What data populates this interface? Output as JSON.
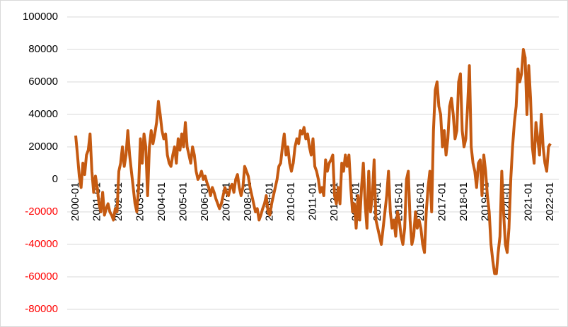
{
  "chart_data": {
    "type": "line",
    "x": [
      "2000-01",
      "2000-02",
      "2000-03",
      "2000-04",
      "2000-05",
      "2000-06",
      "2000-07",
      "2000-08",
      "2000-09",
      "2000-10",
      "2000-11",
      "2000-12",
      "2001-01",
      "2001-02",
      "2001-03",
      "2001-04",
      "2001-05",
      "2001-06",
      "2001-07",
      "2001-08",
      "2001-09",
      "2001-10",
      "2001-11",
      "2001-12",
      "2002-01",
      "2002-02",
      "2002-03",
      "2002-04",
      "2002-05",
      "2002-06",
      "2002-07",
      "2002-08",
      "2002-09",
      "2002-10",
      "2002-11",
      "2002-12",
      "2003-01",
      "2003-02",
      "2003-03",
      "2003-04",
      "2003-05",
      "2003-06",
      "2003-07",
      "2003-08",
      "2003-09",
      "2003-10",
      "2003-11",
      "2003-12",
      "2004-01",
      "2004-02",
      "2004-03",
      "2004-04",
      "2004-05",
      "2004-06",
      "2004-07",
      "2004-08",
      "2004-09",
      "2004-10",
      "2004-11",
      "2004-12",
      "2005-01",
      "2005-02",
      "2005-03",
      "2005-04",
      "2005-05",
      "2005-06",
      "2005-07",
      "2005-08",
      "2005-09",
      "2005-10",
      "2005-11",
      "2005-12",
      "2006-01",
      "2006-02",
      "2006-03",
      "2006-04",
      "2006-05",
      "2006-06",
      "2006-07",
      "2006-08",
      "2006-09",
      "2006-10",
      "2006-11",
      "2006-12",
      "2007-01",
      "2007-02",
      "2007-03",
      "2007-04",
      "2007-05",
      "2007-06",
      "2007-07",
      "2007-08",
      "2007-09",
      "2007-10",
      "2007-11",
      "2007-12",
      "2008-01",
      "2008-02",
      "2008-03",
      "2008-04",
      "2008-05",
      "2008-06",
      "2008-07",
      "2008-08",
      "2008-09",
      "2008-10",
      "2008-11",
      "2008-12",
      "2009-01",
      "2009-02",
      "2009-03",
      "2009-04",
      "2009-05",
      "2009-06",
      "2009-07",
      "2009-08",
      "2009-09",
      "2009-10",
      "2009-11",
      "2009-12",
      "2010-01",
      "2010-02",
      "2010-03",
      "2010-04",
      "2010-05",
      "2010-06",
      "2010-07",
      "2010-08",
      "2010-09",
      "2010-10",
      "2010-11",
      "2010-12",
      "2011-01",
      "2011-02",
      "2011-03",
      "2011-04",
      "2011-05",
      "2011-06",
      "2011-07",
      "2011-08",
      "2011-09",
      "2011-10",
      "2011-11",
      "2011-12",
      "2012-01",
      "2012-02",
      "2012-03",
      "2012-04",
      "2012-05",
      "2012-06",
      "2012-07",
      "2012-08",
      "2012-09",
      "2012-10",
      "2012-11",
      "2012-12",
      "2013-01",
      "2013-02",
      "2013-03",
      "2013-04",
      "2013-05",
      "2013-06",
      "2013-07",
      "2013-08",
      "2013-09",
      "2013-10",
      "2013-11",
      "2013-12",
      "2014-01",
      "2014-02",
      "2014-03",
      "2014-04",
      "2014-05",
      "2014-06",
      "2014-07",
      "2014-08",
      "2014-09",
      "2014-10",
      "2014-11",
      "2014-12",
      "2015-01",
      "2015-02",
      "2015-03",
      "2015-04",
      "2015-05",
      "2015-06",
      "2015-07",
      "2015-08",
      "2015-09",
      "2015-10",
      "2015-11",
      "2015-12",
      "2016-01",
      "2016-02",
      "2016-03",
      "2016-04",
      "2016-05",
      "2016-06",
      "2016-07",
      "2016-08",
      "2016-09",
      "2016-10",
      "2016-11",
      "2016-12",
      "2017-01",
      "2017-02",
      "2017-03",
      "2017-04",
      "2017-05",
      "2017-06",
      "2017-07",
      "2017-08",
      "2017-09",
      "2017-10",
      "2017-11",
      "2017-12",
      "2018-01",
      "2018-02",
      "2018-03",
      "2018-04",
      "2018-05",
      "2018-06",
      "2018-07",
      "2018-08",
      "2018-09",
      "2018-10",
      "2018-11",
      "2018-12",
      "2019-01",
      "2019-02",
      "2019-03",
      "2019-04",
      "2019-05",
      "2019-06",
      "2019-07",
      "2019-08",
      "2019-09",
      "2019-10",
      "2019-11",
      "2019-12",
      "2020-01",
      "2020-02",
      "2020-03",
      "2020-04",
      "2020-05",
      "2020-06",
      "2020-07",
      "2020-08",
      "2020-09",
      "2020-10",
      "2020-11",
      "2020-12",
      "2021-01",
      "2021-02",
      "2021-03",
      "2021-04",
      "2021-05",
      "2021-06",
      "2021-07",
      "2021-08",
      "2021-09",
      "2021-10",
      "2021-11",
      "2021-12",
      "2022-01"
    ],
    "series": [
      {
        "color": "#c55a11",
        "values": [
          27000,
          15000,
          2000,
          -5000,
          10000,
          3000,
          15000,
          18000,
          28000,
          5000,
          -8000,
          2000,
          -5000,
          -15000,
          -20000,
          -8000,
          -22000,
          -18000,
          -15000,
          -20000,
          -22000,
          -25000,
          -18000,
          -20000,
          5000,
          10000,
          20000,
          8000,
          15000,
          30000,
          15000,
          5000,
          -5000,
          -15000,
          -20000,
          -5000,
          25000,
          10000,
          28000,
          20000,
          -10000,
          20000,
          30000,
          22000,
          28000,
          35000,
          48000,
          40000,
          30000,
          25000,
          28000,
          15000,
          10000,
          8000,
          15000,
          20000,
          10000,
          25000,
          18000,
          28000,
          20000,
          35000,
          20000,
          15000,
          10000,
          20000,
          15000,
          5000,
          0,
          2000,
          5000,
          0,
          2000,
          -2000,
          -5000,
          -10000,
          -5000,
          -8000,
          -12000,
          -15000,
          -18000,
          -15000,
          -10000,
          -5000,
          -8000,
          -10000,
          -5000,
          -3000,
          -8000,
          0,
          3000,
          -5000,
          -10000,
          -5000,
          8000,
          5000,
          2000,
          -5000,
          -10000,
          -15000,
          -20000,
          -18000,
          -25000,
          -22000,
          -18000,
          -15000,
          -10000,
          -20000,
          -22000,
          -15000,
          -10000,
          -5000,
          0,
          8000,
          10000,
          20000,
          28000,
          15000,
          20000,
          10000,
          5000,
          10000,
          20000,
          25000,
          22000,
          30000,
          28000,
          32000,
          25000,
          28000,
          20000,
          15000,
          25000,
          8000,
          5000,
          0,
          -8000,
          -5000,
          -10000,
          12000,
          5000,
          10000,
          12000,
          15000,
          -10000,
          -15000,
          -5000,
          -15000,
          10000,
          5000,
          15000,
          8000,
          15000,
          -5000,
          -20000,
          -15000,
          -30000,
          -10000,
          -25000,
          -5000,
          10000,
          -15000,
          -30000,
          5000,
          -20000,
          -10000,
          12000,
          -25000,
          -30000,
          -35000,
          -40000,
          -30000,
          -20000,
          -10000,
          5000,
          -20000,
          -30000,
          -25000,
          -35000,
          -20000,
          -25000,
          -35000,
          -40000,
          -30000,
          0,
          5000,
          -25000,
          -40000,
          -35000,
          -20000,
          -30000,
          -25000,
          -30000,
          -40000,
          -45000,
          -20000,
          -5000,
          5000,
          -20000,
          30000,
          55000,
          60000,
          45000,
          40000,
          20000,
          30000,
          15000,
          25000,
          45000,
          50000,
          40000,
          25000,
          30000,
          60000,
          65000,
          30000,
          20000,
          25000,
          45000,
          70000,
          20000,
          10000,
          5000,
          -5000,
          10000,
          12000,
          -10000,
          15000,
          5000,
          -10000,
          -20000,
          -40000,
          -50000,
          -58000,
          -58000,
          -45000,
          -35000,
          5000,
          -20000,
          -40000,
          -45000,
          -30000,
          0,
          20000,
          35000,
          45000,
          68000,
          60000,
          65000,
          80000,
          75000,
          40000,
          70000,
          50000,
          20000,
          10000,
          35000,
          25000,
          15000,
          40000,
          20000,
          10000,
          5000,
          20000,
          22000
        ]
      }
    ],
    "xticks": [
      "2000-01",
      "2001-01",
      "2002-01",
      "2003-01",
      "2004-01",
      "2005-01",
      "2006-01",
      "2007-01",
      "2008-01",
      "2009-01",
      "2010-01",
      "2011-01",
      "2012-01",
      "2013-01",
      "2014-01",
      "2015-01",
      "2016-01",
      "2017-01",
      "2018-01",
      "2019-01",
      "2020-01",
      "2021-01",
      "2022-01"
    ],
    "ylim": [
      -80000,
      100000
    ],
    "yticks": [
      -80000,
      -60000,
      -40000,
      -20000,
      0,
      20000,
      40000,
      60000,
      80000,
      100000
    ],
    "grid": true,
    "tick_color": "#000000",
    "negative_tick_color": "#ff0000"
  }
}
